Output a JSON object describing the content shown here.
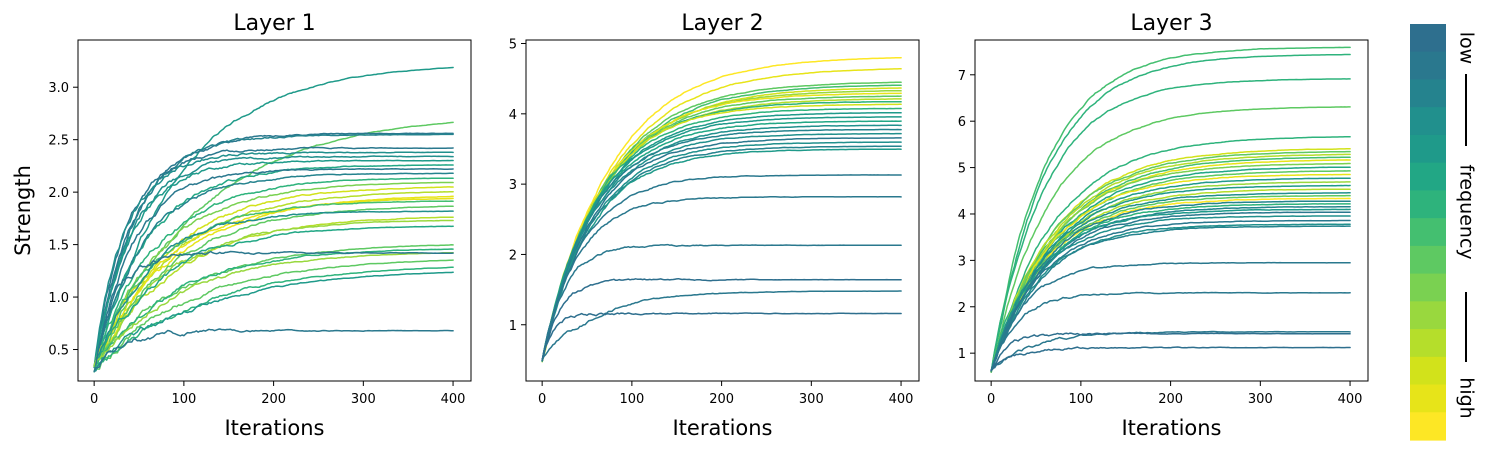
{
  "figure": {
    "colorbar": {
      "label_low": "low",
      "label_mid": "frequency",
      "label_high": "high",
      "colors": [
        "#2e6f8e",
        "#2a788e",
        "#25838e",
        "#21908d",
        "#1f9a8a",
        "#22a785",
        "#2eb37c",
        "#44bf70",
        "#5ec962",
        "#7ad151",
        "#99d83e",
        "#b5de2b",
        "#d2e21b",
        "#e7e419",
        "#fde725"
      ]
    }
  },
  "chart_data": [
    {
      "type": "line",
      "title": "Layer 1",
      "xlabel": "Iterations",
      "ylabel": "Strength",
      "xlim": [
        -18,
        420
      ],
      "ylim": [
        0.2,
        3.45
      ],
      "xticks": [
        0,
        100,
        200,
        300,
        400
      ],
      "yticks": [
        0.5,
        1.0,
        1.5,
        2.0,
        2.5,
        3.0
      ],
      "ytick_labels": [
        "0.5",
        "1.0",
        "1.5",
        "2.0",
        "2.5",
        "3.0"
      ],
      "x_end": 400,
      "start_value": 0.32,
      "grid": false,
      "legend": "colorbar on right",
      "series": [
        {
          "final": 3.23,
          "tau": 95,
          "freq": 0.25
        },
        {
          "final": 2.75,
          "tau": 120,
          "freq": 0.55
        },
        {
          "final": 2.56,
          "tau": 45,
          "freq": 0.05
        },
        {
          "final": 2.55,
          "tau": 45,
          "freq": 0.12
        },
        {
          "final": 2.42,
          "tau": 35,
          "freq": 0.1
        },
        {
          "final": 2.38,
          "tau": 35,
          "freq": 0.18
        },
        {
          "final": 2.34,
          "tau": 40,
          "freq": 0.22
        },
        {
          "final": 2.3,
          "tau": 40,
          "freq": 0.3
        },
        {
          "final": 2.26,
          "tau": 60,
          "freq": 0.38
        },
        {
          "final": 2.22,
          "tau": 45,
          "freq": 0.08
        },
        {
          "final": 2.18,
          "tau": 55,
          "freq": 0.15
        },
        {
          "final": 2.14,
          "tau": 70,
          "freq": 0.42
        },
        {
          "final": 2.1,
          "tau": 75,
          "freq": 0.65
        },
        {
          "final": 2.06,
          "tau": 80,
          "freq": 0.85
        },
        {
          "final": 2.02,
          "tau": 85,
          "freq": 0.75
        },
        {
          "final": 1.98,
          "tau": 90,
          "freq": 0.95
        },
        {
          "final": 1.95,
          "tau": 80,
          "freq": 0.9
        },
        {
          "final": 1.92,
          "tau": 70,
          "freq": 0.5
        },
        {
          "final": 1.88,
          "tau": 85,
          "freq": 0.6
        },
        {
          "final": 1.82,
          "tau": 60,
          "freq": 0.2
        },
        {
          "final": 1.78,
          "tau": 90,
          "freq": 0.8
        },
        {
          "final": 1.74,
          "tau": 80,
          "freq": 0.7
        },
        {
          "final": 1.68,
          "tau": 75,
          "freq": 0.35
        },
        {
          "final": 1.52,
          "tau": 100,
          "freq": 0.6
        },
        {
          "final": 1.47,
          "tau": 90,
          "freq": 0.45
        },
        {
          "final": 1.44,
          "tau": 95,
          "freq": 0.7
        },
        {
          "final": 1.42,
          "tau": 25,
          "freq": 0.1
        },
        {
          "final": 1.38,
          "tau": 110,
          "freq": 0.55
        },
        {
          "final": 1.32,
          "tau": 120,
          "freq": 0.4
        },
        {
          "final": 1.27,
          "tau": 120,
          "freq": 0.3
        },
        {
          "final": 0.68,
          "tau": 30,
          "freq": 0.05
        }
      ]
    },
    {
      "type": "line",
      "title": "Layer 2",
      "xlabel": "Iterations",
      "ylabel": "",
      "xlim": [
        -18,
        420
      ],
      "ylim": [
        0.2,
        5.05
      ],
      "xticks": [
        0,
        100,
        200,
        300,
        400
      ],
      "yticks": [
        1,
        2,
        3,
        4,
        5
      ],
      "ytick_labels": [
        "1",
        "2",
        "3",
        "4",
        "5"
      ],
      "x_end": 400,
      "start_value": 0.5,
      "grid": false,
      "legend": "colorbar on right",
      "series": [
        {
          "final": 4.82,
          "tau": 75,
          "freq": 1.0
        },
        {
          "final": 4.66,
          "tau": 75,
          "freq": 0.92
        },
        {
          "final": 4.46,
          "tau": 70,
          "freq": 0.6
        },
        {
          "final": 4.42,
          "tau": 70,
          "freq": 0.5
        },
        {
          "final": 4.38,
          "tau": 70,
          "freq": 0.85
        },
        {
          "final": 4.34,
          "tau": 68,
          "freq": 0.7
        },
        {
          "final": 4.3,
          "tau": 65,
          "freq": 0.95
        },
        {
          "final": 4.26,
          "tau": 65,
          "freq": 0.55
        },
        {
          "final": 4.22,
          "tau": 65,
          "freq": 0.78
        },
        {
          "final": 4.18,
          "tau": 62,
          "freq": 0.45
        },
        {
          "final": 4.14,
          "tau": 60,
          "freq": 0.88
        },
        {
          "final": 4.08,
          "tau": 60,
          "freq": 0.4
        },
        {
          "final": 4.02,
          "tau": 60,
          "freq": 0.3
        },
        {
          "final": 3.96,
          "tau": 58,
          "freq": 0.25
        },
        {
          "final": 3.9,
          "tau": 58,
          "freq": 0.35
        },
        {
          "final": 3.84,
          "tau": 58,
          "freq": 0.2
        },
        {
          "final": 3.78,
          "tau": 55,
          "freq": 0.15
        },
        {
          "final": 3.72,
          "tau": 55,
          "freq": 0.22
        },
        {
          "final": 3.66,
          "tau": 55,
          "freq": 0.1
        },
        {
          "final": 3.6,
          "tau": 55,
          "freq": 0.18
        },
        {
          "final": 3.54,
          "tau": 55,
          "freq": 0.12
        },
        {
          "final": 3.5,
          "tau": 55,
          "freq": 0.28
        },
        {
          "final": 3.13,
          "tau": 45,
          "freq": 0.08
        },
        {
          "final": 2.82,
          "tau": 40,
          "freq": 0.05
        },
        {
          "final": 2.13,
          "tau": 25,
          "freq": 0.04
        },
        {
          "final": 1.64,
          "tau": 20,
          "freq": 0.03
        },
        {
          "final": 1.48,
          "tau": 60,
          "freq": 0.06
        },
        {
          "final": 1.16,
          "tau": 12,
          "freq": 0.02
        }
      ]
    },
    {
      "type": "line",
      "title": "Layer 3",
      "xlabel": "Iterations",
      "ylabel": "",
      "xlim": [
        -18,
        420
      ],
      "ylim": [
        0.4,
        7.75
      ],
      "xticks": [
        0,
        100,
        200,
        300,
        400
      ],
      "yticks": [
        1,
        2,
        3,
        4,
        5,
        6,
        7
      ],
      "ytick_labels": [
        "1",
        "2",
        "3",
        "4",
        "5",
        "6",
        "7"
      ],
      "x_end": 400,
      "start_value": 0.6,
      "grid": false,
      "legend": "colorbar on right",
      "series": [
        {
          "final": 7.6,
          "tau": 60,
          "freq": 0.5
        },
        {
          "final": 7.45,
          "tau": 62,
          "freq": 0.42
        },
        {
          "final": 6.92,
          "tau": 60,
          "freq": 0.45
        },
        {
          "final": 6.32,
          "tau": 65,
          "freq": 0.55
        },
        {
          "final": 5.68,
          "tau": 70,
          "freq": 0.4
        },
        {
          "final": 5.42,
          "tau": 70,
          "freq": 0.85
        },
        {
          "final": 5.36,
          "tau": 70,
          "freq": 0.6
        },
        {
          "final": 5.3,
          "tau": 70,
          "freq": 0.75
        },
        {
          "final": 5.24,
          "tau": 70,
          "freq": 0.5
        },
        {
          "final": 5.18,
          "tau": 70,
          "freq": 0.9
        },
        {
          "final": 5.1,
          "tau": 68,
          "freq": 0.65
        },
        {
          "final": 5.02,
          "tau": 68,
          "freq": 0.35
        },
        {
          "final": 4.94,
          "tau": 68,
          "freq": 0.55
        },
        {
          "final": 4.86,
          "tau": 65,
          "freq": 0.95
        },
        {
          "final": 4.78,
          "tau": 65,
          "freq": 0.3
        },
        {
          "final": 4.7,
          "tau": 65,
          "freq": 0.7
        },
        {
          "final": 4.62,
          "tau": 62,
          "freq": 0.25
        },
        {
          "final": 4.54,
          "tau": 62,
          "freq": 0.8
        },
        {
          "final": 4.46,
          "tau": 60,
          "freq": 0.2
        },
        {
          "final": 4.4,
          "tau": 60,
          "freq": 0.6
        },
        {
          "final": 4.34,
          "tau": 60,
          "freq": 1.0
        },
        {
          "final": 4.28,
          "tau": 58,
          "freq": 0.15
        },
        {
          "final": 4.22,
          "tau": 58,
          "freq": 0.45
        },
        {
          "final": 4.16,
          "tau": 58,
          "freq": 0.12
        },
        {
          "final": 4.1,
          "tau": 55,
          "freq": 0.28
        },
        {
          "final": 4.04,
          "tau": 55,
          "freq": 0.1
        },
        {
          "final": 3.96,
          "tau": 55,
          "freq": 0.18
        },
        {
          "final": 3.86,
          "tau": 55,
          "freq": 0.08
        },
        {
          "final": 3.78,
          "tau": 55,
          "freq": 0.22
        },
        {
          "final": 3.74,
          "tau": 55,
          "freq": 0.14
        },
        {
          "final": 2.95,
          "tau": 40,
          "freq": 0.06
        },
        {
          "final": 2.3,
          "tau": 30,
          "freq": 0.05
        },
        {
          "final": 1.46,
          "tau": 45,
          "freq": 0.04
        },
        {
          "final": 1.42,
          "tau": 20,
          "freq": 0.03
        },
        {
          "final": 1.12,
          "tau": 25,
          "freq": 0.02
        }
      ]
    }
  ]
}
